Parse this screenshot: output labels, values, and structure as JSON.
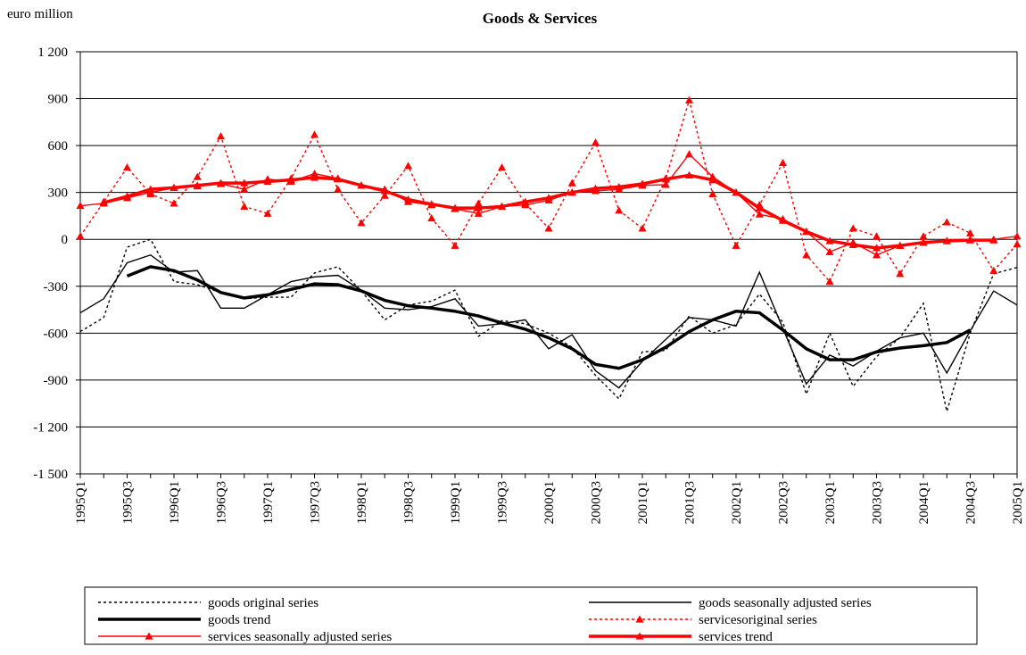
{
  "chart_data": {
    "type": "line",
    "title": "Goods & Services",
    "ylabel": "euro million",
    "categories": [
      "1995Q1",
      null,
      "1995Q3",
      null,
      "1996Q1",
      null,
      "1996Q3",
      null,
      "1997Q1",
      null,
      "1997Q3",
      null,
      "1998Q1",
      null,
      "1998Q3",
      null,
      "1999Q1",
      null,
      "1999Q3",
      null,
      "2000Q1",
      null,
      "2000Q3",
      null,
      "2001Q1",
      null,
      "2001Q3",
      null,
      "2002Q1",
      null,
      "2002Q3",
      null,
      "2003Q1",
      null,
      "2003Q3",
      null,
      "2004Q1",
      null,
      "2004Q3",
      null,
      "2005Q1"
    ],
    "ylim": [
      -1500,
      1200
    ],
    "yticks": [
      {
        "value": -1500,
        "label": "-1 500"
      },
      {
        "value": -1200,
        "label": "-1 200"
      },
      -900,
      -600,
      -300,
      0,
      300,
      600,
      900,
      {
        "value": 1200,
        "label": "1 200"
      }
    ],
    "grid": true,
    "series": [
      {
        "name": "goods original series",
        "color": "#000000",
        "dash": "dotted",
        "width": "thin",
        "marker": "none",
        "values": [
          -590,
          -500,
          -50,
          0,
          -270,
          -290,
          -340,
          -380,
          -370,
          -370,
          -215,
          -175,
          -330,
          -515,
          -420,
          -395,
          -325,
          -620,
          -520,
          -540,
          -600,
          -690,
          -870,
          -1020,
          -720,
          -710,
          -490,
          -600,
          -545,
          -350,
          -530,
          -990,
          -600,
          -940,
          -750,
          -630,
          -410,
          -1100,
          -600,
          -220,
          -180
        ]
      },
      {
        "name": "goods seasonally adjusted series",
        "color": "#000000",
        "dash": "solid",
        "width": "thin",
        "marker": "none",
        "values": [
          -470,
          -380,
          -150,
          -100,
          -210,
          -200,
          -440,
          -440,
          -355,
          -270,
          -240,
          -230,
          -325,
          -440,
          -450,
          -430,
          -380,
          -555,
          -540,
          -515,
          -700,
          -610,
          -840,
          -950,
          -780,
          -640,
          -500,
          -515,
          -555,
          -210,
          -570,
          -925,
          -740,
          -810,
          -715,
          -630,
          -600,
          -855,
          -585,
          -330,
          -420
        ]
      },
      {
        "name": "goods trend",
        "color": "#000000",
        "dash": "solid",
        "width": "thick",
        "marker": "none",
        "values": [
          null,
          null,
          -235,
          -175,
          -200,
          -260,
          -340,
          -375,
          -355,
          -320,
          -285,
          -290,
          -330,
          -390,
          -425,
          -440,
          -460,
          -490,
          -535,
          -575,
          -630,
          -700,
          -800,
          -825,
          -770,
          -690,
          -590,
          -515,
          -460,
          -470,
          -580,
          -700,
          -770,
          -770,
          -720,
          -695,
          -680,
          -660,
          -580,
          null,
          null
        ]
      },
      {
        "name": "servicesoriginal series",
        "color": "#ff0000",
        "dash": "dotted",
        "width": "thin",
        "marker": "triangle",
        "values": [
          20,
          240,
          460,
          290,
          230,
          400,
          660,
          210,
          165,
          390,
          670,
          320,
          105,
          280,
          470,
          135,
          -40,
          230,
          460,
          230,
          70,
          360,
          620,
          185,
          70,
          390,
          890,
          290,
          -40,
          220,
          490,
          -100,
          -270,
          70,
          20,
          -220,
          20,
          110,
          40,
          -200,
          -30
        ]
      },
      {
        "name": "services seasonally adjusted series",
        "color": "#ff0000",
        "dash": "solid",
        "width": "thin",
        "marker": "triangle",
        "values": [
          215,
          230,
          265,
          300,
          330,
          340,
          355,
          320,
          385,
          370,
          420,
          390,
          345,
          320,
          240,
          220,
          195,
          165,
          210,
          220,
          250,
          300,
          310,
          320,
          345,
          350,
          545,
          400,
          300,
          160,
          130,
          50,
          -80,
          -20,
          -100,
          -40,
          -20,
          -10,
          0,
          0,
          20
        ]
      },
      {
        "name": "services trend",
        "color": "#ff0000",
        "dash": "solid",
        "width": "thick",
        "marker": "triangle",
        "values": [
          null,
          235,
          275,
          320,
          330,
          345,
          360,
          360,
          370,
          380,
          395,
          385,
          345,
          310,
          255,
          225,
          200,
          200,
          210,
          240,
          265,
          300,
          325,
          335,
          355,
          385,
          410,
          380,
          300,
          200,
          120,
          50,
          -10,
          -35,
          -55,
          -40,
          -20,
          -10,
          -5,
          -5,
          null
        ]
      }
    ]
  }
}
